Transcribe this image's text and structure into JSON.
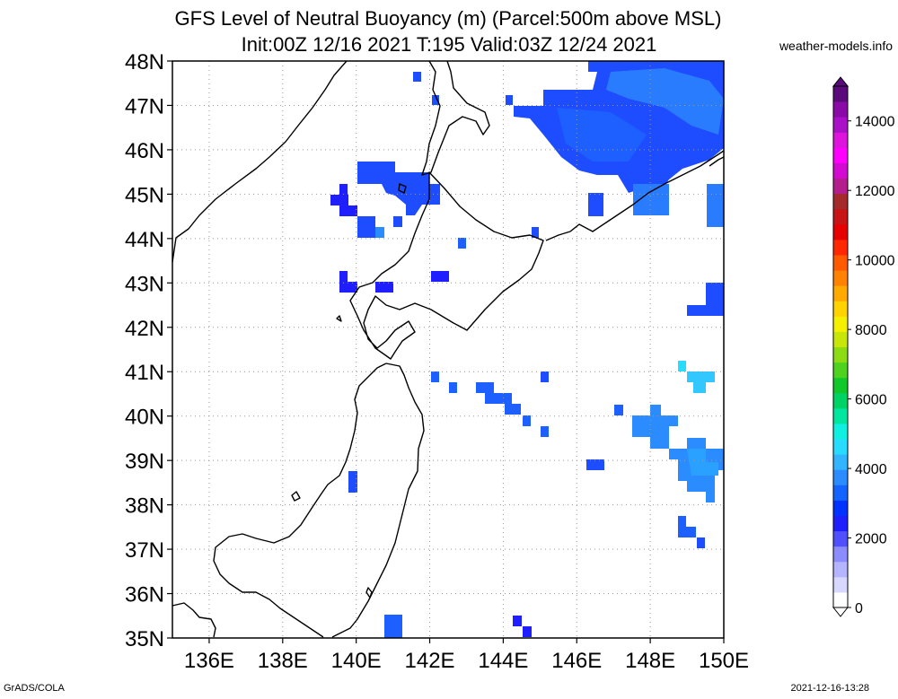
{
  "title": {
    "line1": "GFS Level of Neutral Buoyancy (m) (Parcel:500m above MSL)",
    "line2": "Init:00Z 12/16 2021 T:195 Valid:03Z 12/24 2021"
  },
  "credit": "weather-models.info",
  "footer": {
    "left": "GrADS/COLA",
    "right": "2021-12-16-13:28"
  },
  "map": {
    "lat_labels": [
      "48N",
      "47N",
      "46N",
      "45N",
      "44N",
      "43N",
      "42N",
      "41N",
      "40N",
      "39N",
      "38N",
      "37N",
      "36N",
      "35N"
    ],
    "lon_labels": [
      "136E",
      "138E",
      "140E",
      "142E",
      "144E",
      "146E",
      "148E",
      "150E"
    ],
    "extent": {
      "lon_min": 135,
      "lon_max": 150,
      "lat_min": 35,
      "lat_max": 48
    }
  },
  "colorbar": {
    "labels": [
      "14000",
      "12000",
      "10000",
      "8000",
      "6000",
      "4000",
      "2000",
      "0"
    ],
    "colors": [
      "#ffffff",
      "#d8d8ff",
      "#b4b4ff",
      "#8c8cff",
      "#5050ff",
      "#1e1eff",
      "#0032ff",
      "#1464ff",
      "#2a8cff",
      "#32b4ff",
      "#28dcff",
      "#10f0e0",
      "#00e6a0",
      "#00d264",
      "#10c82a",
      "#4ed21e",
      "#8cdc14",
      "#c8e60a",
      "#f5f000",
      "#ffd200",
      "#ffaa00",
      "#ff8200",
      "#ff5a00",
      "#ff2800",
      "#e60000",
      "#c81414",
      "#a52a2a",
      "#b41e8c",
      "#d20ad2",
      "#ff00ff",
      "#dc14dc",
      "#aa10c8",
      "#8a0aa8",
      "#5a0a7a"
    ]
  }
}
